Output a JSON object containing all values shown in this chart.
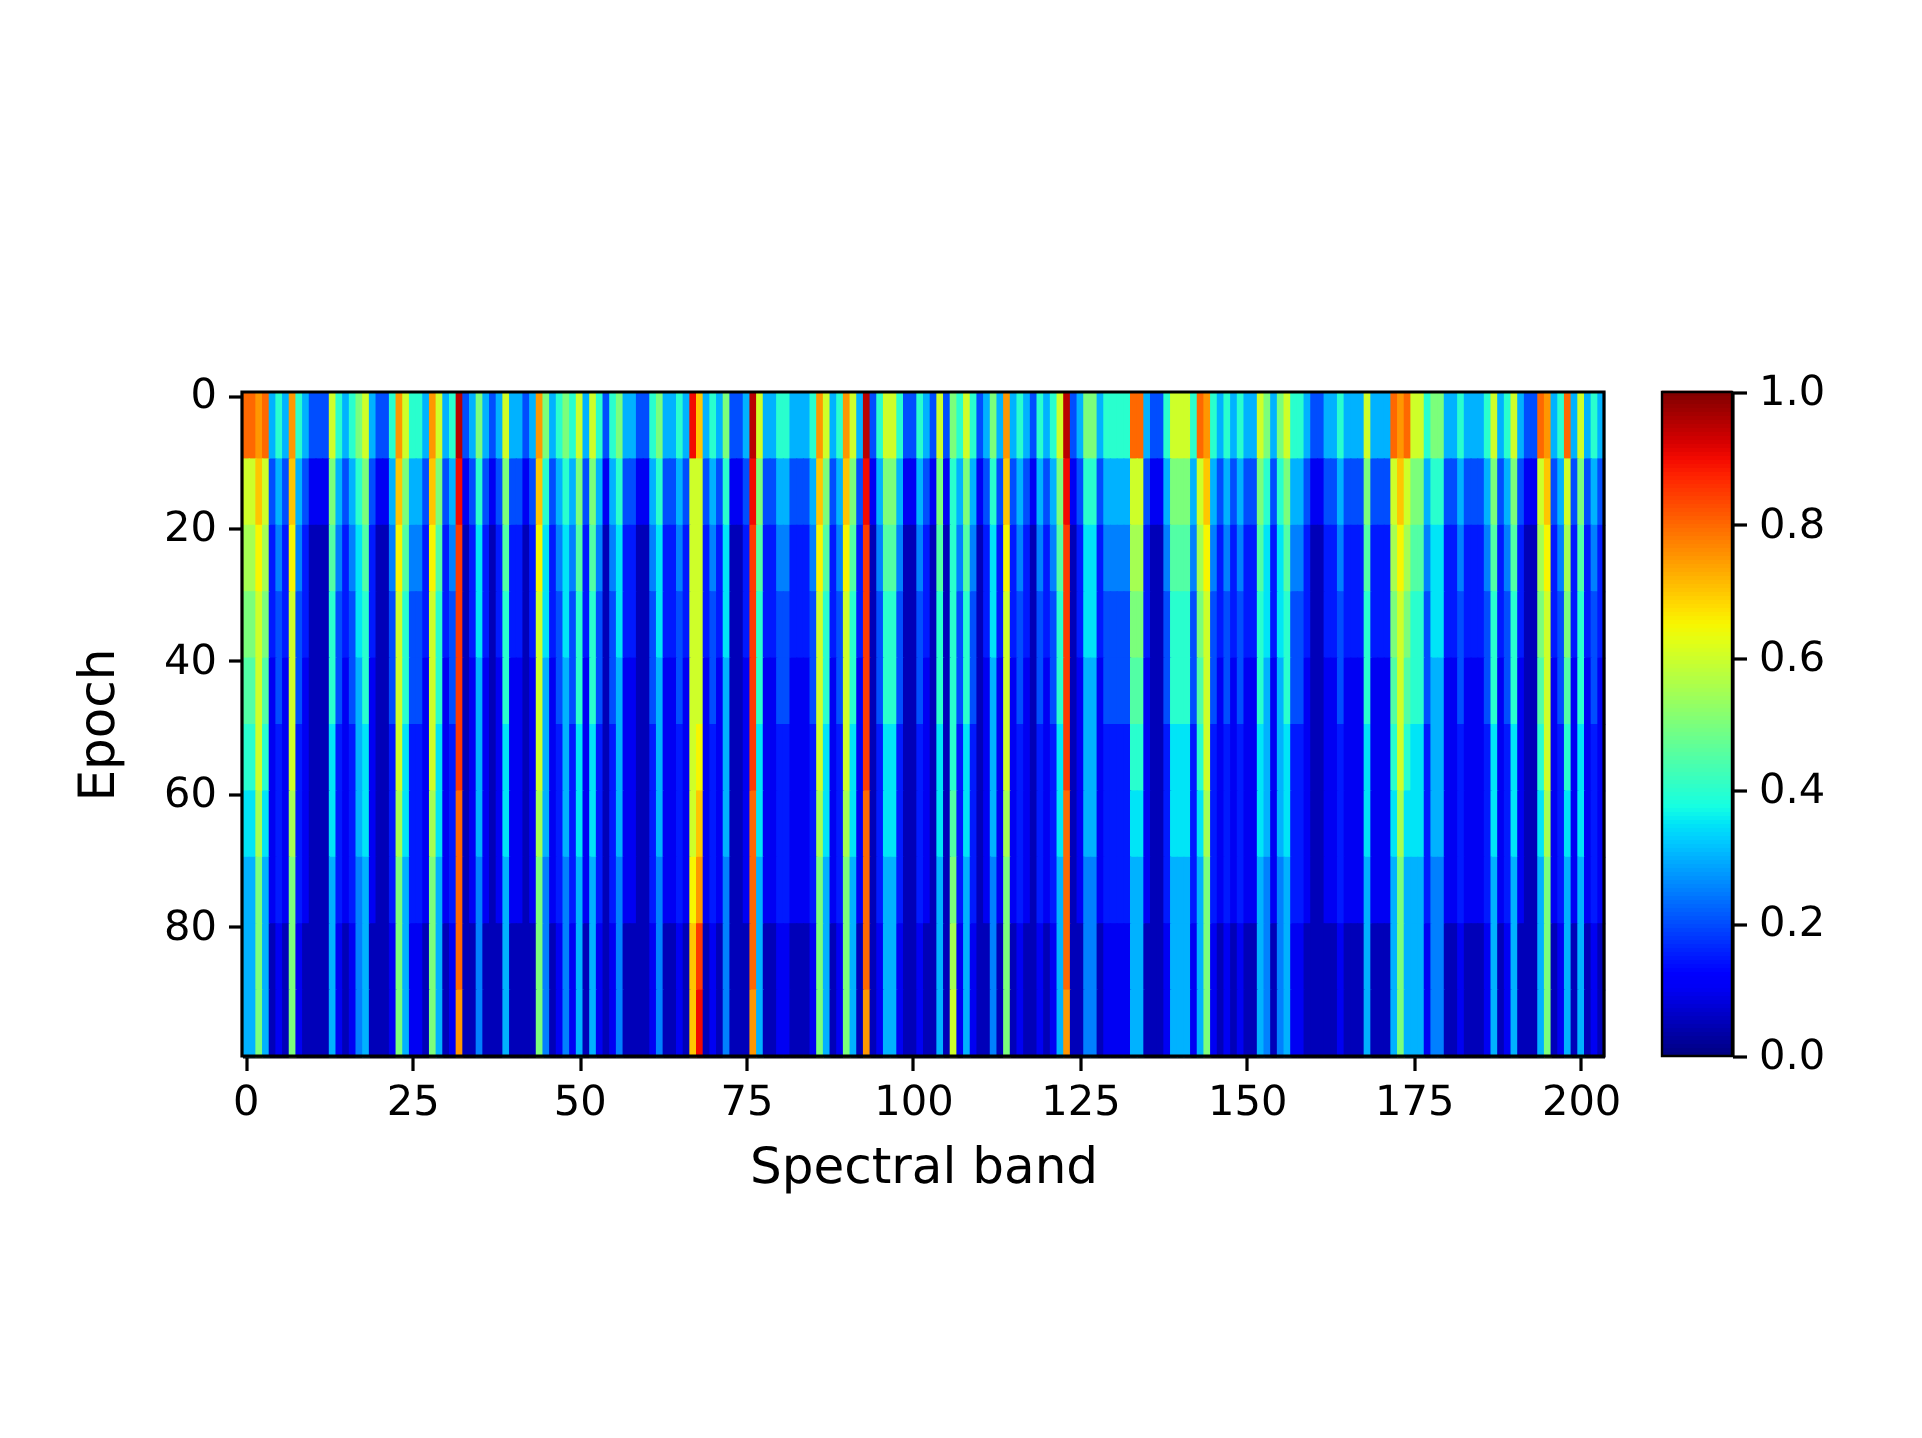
{
  "chart_data": {
    "type": "heatmap",
    "xlabel": "Spectral band",
    "ylabel": "Epoch",
    "xlim": [
      -0.5,
      203.5
    ],
    "ylim": [
      99.5,
      -0.5
    ],
    "xticks": [
      0,
      25,
      50,
      75,
      100,
      125,
      150,
      175,
      200
    ],
    "yticks": [
      0,
      20,
      40,
      60,
      80
    ],
    "clim": [
      0,
      1
    ],
    "cticks": [
      {
        "value": 0,
        "label": "0.0"
      },
      0.2,
      0.4,
      0.6,
      0.8,
      {
        "value": 1,
        "label": "1.0"
      }
    ],
    "cells": [
      [
        0.8,
        0.8,
        0.75,
        0.8,
        0.3,
        0.4,
        0.3,
        0.75,
        0.4,
        0.3,
        0.2,
        0.2,
        0.2,
        0.6,
        0.4,
        0.3,
        0.4,
        0.5,
        0.6,
        0.3,
        0.2,
        0.2,
        0.4,
        0.75,
        0.6,
        0.4,
        0.4,
        0.3,
        0.75,
        0.6,
        0.3,
        0.4,
        0.95,
        0.2,
        0.3,
        0.5,
        0.3,
        0.2,
        0.3,
        0.6,
        0.3,
        0.3,
        0.2,
        0.3,
        0.75,
        0.5,
        0.3,
        0.4,
        0.5,
        0.4,
        0.6,
        0.3,
        0.6,
        0.4,
        0.2,
        0.4,
        0.5,
        0.3,
        0.3,
        0.2,
        0.2,
        0.4,
        0.5,
        0.3,
        0.3,
        0.4,
        0.3,
        0.9,
        0.7,
        0.3,
        0.4,
        0.3,
        0.5,
        0.2,
        0.2,
        0.3,
        0.95,
        0.6,
        0.3,
        0.3,
        0.4,
        0.4,
        0.3,
        0.3,
        0.3,
        0.4,
        0.75,
        0.6,
        0.3,
        0.4,
        0.75,
        0.6,
        0.3,
        0.95,
        0.2,
        0.4,
        0.6,
        0.6,
        0.4,
        0.2,
        0.2,
        0.4,
        0.3,
        0.2,
        0.6,
        0.2,
        0.5,
        0.4,
        0.6,
        0.4,
        0.2,
        0.3,
        0.5,
        0.3,
        0.75,
        0.3,
        0.4,
        0.3,
        0.2,
        0.4,
        0.3,
        0.4,
        0.6,
        0.95,
        0.2,
        0.3,
        0.5,
        0.5,
        0.3,
        0.4,
        0.4,
        0.4,
        0.4,
        0.8,
        0.8,
        0.3,
        0.2,
        0.2,
        0.4,
        0.6,
        0.6,
        0.6,
        0.4,
        0.8,
        0.75,
        0.4,
        0.3,
        0.4,
        0.3,
        0.4,
        0.3,
        0.3,
        0.6,
        0.5,
        0.3,
        0.5,
        0.6,
        0.4,
        0.4,
        0.3,
        0.2,
        0.2,
        0.3,
        0.3,
        0.4,
        0.3,
        0.3,
        0.3,
        0.6,
        0.3,
        0.3,
        0.3,
        0.8,
        0.75,
        0.8,
        0.6,
        0.6,
        0.4,
        0.5,
        0.5,
        0.3,
        0.3,
        0.4,
        0.3,
        0.3,
        0.3,
        0.4,
        0.6,
        0.3,
        0.4,
        0.6,
        0.3,
        0.2,
        0.2,
        0.8,
        0.75,
        0.3,
        0.4,
        0.8,
        0.3,
        0.6,
        0.3,
        0.4,
        0.3
      ],
      [
        0.6,
        0.6,
        0.7,
        0.6,
        0.2,
        0.3,
        0.2,
        0.7,
        0.3,
        0.2,
        0.1,
        0.1,
        0.1,
        0.5,
        0.3,
        0.2,
        0.3,
        0.4,
        0.5,
        0.2,
        0.1,
        0.1,
        0.3,
        0.7,
        0.5,
        0.3,
        0.3,
        0.2,
        0.7,
        0.5,
        0.2,
        0.3,
        0.9,
        0.1,
        0.2,
        0.4,
        0.2,
        0.1,
        0.2,
        0.5,
        0.2,
        0.2,
        0.1,
        0.2,
        0.7,
        0.4,
        0.2,
        0.3,
        0.4,
        0.3,
        0.5,
        0.2,
        0.5,
        0.3,
        0.1,
        0.3,
        0.4,
        0.2,
        0.2,
        0.1,
        0.1,
        0.3,
        0.4,
        0.2,
        0.2,
        0.3,
        0.2,
        0.6,
        0.6,
        0.2,
        0.3,
        0.2,
        0.4,
        0.1,
        0.1,
        0.2,
        0.9,
        0.5,
        0.2,
        0.2,
        0.3,
        0.3,
        0.2,
        0.2,
        0.2,
        0.3,
        0.7,
        0.5,
        0.2,
        0.3,
        0.7,
        0.5,
        0.2,
        0.9,
        0.1,
        0.3,
        0.5,
        0.5,
        0.3,
        0.1,
        0.1,
        0.3,
        0.2,
        0.1,
        0.5,
        0.1,
        0.4,
        0.3,
        0.5,
        0.3,
        0.1,
        0.2,
        0.4,
        0.2,
        0.7,
        0.2,
        0.3,
        0.2,
        0.1,
        0.3,
        0.2,
        0.3,
        0.5,
        0.9,
        0.1,
        0.2,
        0.4,
        0.4,
        0.2,
        0.3,
        0.3,
        0.3,
        0.3,
        0.6,
        0.6,
        0.2,
        0.1,
        0.1,
        0.3,
        0.5,
        0.5,
        0.5,
        0.3,
        0.6,
        0.7,
        0.3,
        0.2,
        0.3,
        0.2,
        0.3,
        0.2,
        0.2,
        0.5,
        0.4,
        0.2,
        0.4,
        0.5,
        0.3,
        0.3,
        0.2,
        0.1,
        0.1,
        0.2,
        0.2,
        0.3,
        0.2,
        0.2,
        0.2,
        0.5,
        0.2,
        0.2,
        0.2,
        0.6,
        0.7,
        0.6,
        0.5,
        0.5,
        0.3,
        0.4,
        0.4,
        0.2,
        0.2,
        0.3,
        0.2,
        0.2,
        0.2,
        0.3,
        0.5,
        0.2,
        0.3,
        0.5,
        0.2,
        0.1,
        0.1,
        0.6,
        0.7,
        0.2,
        0.3,
        0.6,
        0.2,
        0.5,
        0.2,
        0.3,
        0.2
      ],
      [
        0.55,
        0.55,
        0.65,
        0.55,
        0.15,
        0.25,
        0.15,
        0.65,
        0.25,
        0.15,
        0.05,
        0.05,
        0.05,
        0.45,
        0.25,
        0.15,
        0.25,
        0.35,
        0.45,
        0.15,
        0.05,
        0.05,
        0.25,
        0.65,
        0.45,
        0.25,
        0.25,
        0.15,
        0.65,
        0.45,
        0.15,
        0.25,
        0.85,
        0.05,
        0.15,
        0.35,
        0.15,
        0.05,
        0.15,
        0.45,
        0.15,
        0.15,
        0.05,
        0.15,
        0.65,
        0.35,
        0.15,
        0.25,
        0.35,
        0.25,
        0.45,
        0.15,
        0.45,
        0.25,
        0.05,
        0.25,
        0.35,
        0.15,
        0.15,
        0.05,
        0.05,
        0.25,
        0.35,
        0.15,
        0.15,
        0.25,
        0.15,
        0.6,
        0.6,
        0.15,
        0.25,
        0.15,
        0.35,
        0.05,
        0.05,
        0.15,
        0.85,
        0.45,
        0.15,
        0.15,
        0.25,
        0.25,
        0.15,
        0.15,
        0.15,
        0.25,
        0.65,
        0.45,
        0.15,
        0.25,
        0.65,
        0.45,
        0.15,
        0.85,
        0.05,
        0.25,
        0.45,
        0.45,
        0.25,
        0.05,
        0.05,
        0.25,
        0.15,
        0.05,
        0.45,
        0.05,
        0.4,
        0.25,
        0.45,
        0.25,
        0.05,
        0.15,
        0.35,
        0.15,
        0.65,
        0.15,
        0.25,
        0.15,
        0.05,
        0.25,
        0.15,
        0.25,
        0.45,
        0.85,
        0.05,
        0.15,
        0.35,
        0.35,
        0.15,
        0.25,
        0.25,
        0.25,
        0.25,
        0.55,
        0.55,
        0.15,
        0.05,
        0.05,
        0.25,
        0.45,
        0.45,
        0.45,
        0.25,
        0.55,
        0.65,
        0.25,
        0.15,
        0.25,
        0.15,
        0.25,
        0.15,
        0.15,
        0.45,
        0.35,
        0.15,
        0.35,
        0.45,
        0.25,
        0.25,
        0.15,
        0.05,
        0.05,
        0.15,
        0.15,
        0.25,
        0.15,
        0.15,
        0.15,
        0.45,
        0.15,
        0.15,
        0.15,
        0.55,
        0.65,
        0.55,
        0.45,
        0.45,
        0.25,
        0.35,
        0.35,
        0.15,
        0.15,
        0.25,
        0.15,
        0.15,
        0.15,
        0.25,
        0.45,
        0.15,
        0.25,
        0.45,
        0.15,
        0.05,
        0.05,
        0.55,
        0.65,
        0.15,
        0.25,
        0.55,
        0.15,
        0.45,
        0.15,
        0.25,
        0.15
      ],
      [
        0.5,
        0.5,
        0.6,
        0.5,
        0.15,
        0.2,
        0.15,
        0.6,
        0.2,
        0.15,
        0.05,
        0.05,
        0.05,
        0.4,
        0.2,
        0.15,
        0.2,
        0.35,
        0.4,
        0.15,
        0.05,
        0.05,
        0.2,
        0.6,
        0.4,
        0.2,
        0.2,
        0.15,
        0.6,
        0.4,
        0.15,
        0.2,
        0.85,
        0.05,
        0.15,
        0.35,
        0.15,
        0.05,
        0.15,
        0.4,
        0.15,
        0.15,
        0.05,
        0.15,
        0.6,
        0.35,
        0.15,
        0.2,
        0.35,
        0.2,
        0.4,
        0.15,
        0.4,
        0.2,
        0.05,
        0.2,
        0.35,
        0.15,
        0.15,
        0.05,
        0.05,
        0.2,
        0.35,
        0.15,
        0.15,
        0.2,
        0.15,
        0.6,
        0.6,
        0.15,
        0.2,
        0.15,
        0.35,
        0.05,
        0.05,
        0.15,
        0.85,
        0.4,
        0.15,
        0.15,
        0.2,
        0.2,
        0.15,
        0.15,
        0.15,
        0.2,
        0.6,
        0.4,
        0.15,
        0.2,
        0.6,
        0.4,
        0.15,
        0.85,
        0.05,
        0.2,
        0.4,
        0.4,
        0.2,
        0.05,
        0.05,
        0.2,
        0.15,
        0.05,
        0.4,
        0.05,
        0.4,
        0.2,
        0.4,
        0.2,
        0.05,
        0.15,
        0.35,
        0.15,
        0.6,
        0.15,
        0.2,
        0.15,
        0.05,
        0.2,
        0.15,
        0.2,
        0.4,
        0.85,
        0.05,
        0.15,
        0.35,
        0.35,
        0.15,
        0.2,
        0.2,
        0.2,
        0.2,
        0.5,
        0.5,
        0.15,
        0.05,
        0.05,
        0.2,
        0.4,
        0.4,
        0.4,
        0.2,
        0.5,
        0.6,
        0.2,
        0.15,
        0.2,
        0.15,
        0.2,
        0.15,
        0.15,
        0.4,
        0.35,
        0.15,
        0.35,
        0.4,
        0.2,
        0.2,
        0.15,
        0.05,
        0.05,
        0.15,
        0.15,
        0.2,
        0.15,
        0.15,
        0.15,
        0.4,
        0.15,
        0.15,
        0.15,
        0.5,
        0.6,
        0.5,
        0.4,
        0.4,
        0.2,
        0.35,
        0.35,
        0.15,
        0.15,
        0.2,
        0.15,
        0.15,
        0.15,
        0.2,
        0.4,
        0.15,
        0.2,
        0.4,
        0.15,
        0.05,
        0.05,
        0.5,
        0.6,
        0.15,
        0.2,
        0.5,
        0.15,
        0.4,
        0.15,
        0.2,
        0.15
      ],
      [
        0.45,
        0.45,
        0.6,
        0.45,
        0.1,
        0.2,
        0.1,
        0.6,
        0.2,
        0.1,
        0.05,
        0.05,
        0.05,
        0.4,
        0.2,
        0.1,
        0.2,
        0.3,
        0.4,
        0.1,
        0.05,
        0.05,
        0.2,
        0.6,
        0.4,
        0.2,
        0.2,
        0.1,
        0.6,
        0.4,
        0.1,
        0.2,
        0.85,
        0.05,
        0.1,
        0.3,
        0.1,
        0.05,
        0.1,
        0.4,
        0.1,
        0.1,
        0.05,
        0.1,
        0.6,
        0.3,
        0.1,
        0.2,
        0.3,
        0.2,
        0.4,
        0.1,
        0.4,
        0.2,
        0.05,
        0.2,
        0.3,
        0.1,
        0.1,
        0.05,
        0.05,
        0.2,
        0.3,
        0.1,
        0.1,
        0.2,
        0.1,
        0.6,
        0.6,
        0.1,
        0.2,
        0.1,
        0.3,
        0.05,
        0.05,
        0.1,
        0.85,
        0.4,
        0.1,
        0.1,
        0.2,
        0.2,
        0.1,
        0.1,
        0.1,
        0.2,
        0.6,
        0.4,
        0.1,
        0.2,
        0.6,
        0.4,
        0.1,
        0.85,
        0.05,
        0.2,
        0.4,
        0.4,
        0.2,
        0.05,
        0.05,
        0.2,
        0.1,
        0.05,
        0.4,
        0.05,
        0.4,
        0.2,
        0.4,
        0.2,
        0.05,
        0.1,
        0.3,
        0.1,
        0.6,
        0.1,
        0.2,
        0.1,
        0.05,
        0.2,
        0.1,
        0.2,
        0.4,
        0.85,
        0.05,
        0.1,
        0.3,
        0.3,
        0.1,
        0.2,
        0.2,
        0.2,
        0.2,
        0.45,
        0.45,
        0.1,
        0.05,
        0.05,
        0.2,
        0.4,
        0.4,
        0.4,
        0.2,
        0.45,
        0.6,
        0.2,
        0.1,
        0.2,
        0.1,
        0.2,
        0.1,
        0.1,
        0.4,
        0.3,
        0.1,
        0.3,
        0.4,
        0.2,
        0.2,
        0.1,
        0.05,
        0.05,
        0.1,
        0.1,
        0.2,
        0.1,
        0.1,
        0.1,
        0.4,
        0.1,
        0.1,
        0.1,
        0.45,
        0.6,
        0.45,
        0.4,
        0.4,
        0.2,
        0.3,
        0.3,
        0.1,
        0.1,
        0.2,
        0.1,
        0.1,
        0.1,
        0.2,
        0.4,
        0.1,
        0.2,
        0.4,
        0.1,
        0.05,
        0.05,
        0.45,
        0.6,
        0.1,
        0.2,
        0.45,
        0.1,
        0.4,
        0.1,
        0.2,
        0.1
      ],
      [
        0.4,
        0.4,
        0.6,
        0.4,
        0.1,
        0.15,
        0.1,
        0.6,
        0.15,
        0.1,
        0.05,
        0.05,
        0.05,
        0.35,
        0.15,
        0.1,
        0.15,
        0.3,
        0.35,
        0.1,
        0.05,
        0.05,
        0.15,
        0.6,
        0.35,
        0.15,
        0.15,
        0.1,
        0.6,
        0.35,
        0.1,
        0.15,
        0.85,
        0.05,
        0.1,
        0.3,
        0.1,
        0.05,
        0.1,
        0.35,
        0.1,
        0.1,
        0.05,
        0.1,
        0.6,
        0.3,
        0.1,
        0.15,
        0.3,
        0.15,
        0.35,
        0.1,
        0.35,
        0.15,
        0.05,
        0.15,
        0.3,
        0.1,
        0.1,
        0.05,
        0.05,
        0.15,
        0.3,
        0.1,
        0.1,
        0.15,
        0.1,
        0.6,
        0.65,
        0.1,
        0.15,
        0.1,
        0.3,
        0.05,
        0.05,
        0.1,
        0.85,
        0.35,
        0.1,
        0.1,
        0.15,
        0.15,
        0.1,
        0.1,
        0.1,
        0.15,
        0.6,
        0.35,
        0.1,
        0.15,
        0.6,
        0.35,
        0.1,
        0.85,
        0.05,
        0.15,
        0.35,
        0.35,
        0.15,
        0.05,
        0.05,
        0.15,
        0.1,
        0.05,
        0.35,
        0.05,
        0.4,
        0.15,
        0.35,
        0.15,
        0.05,
        0.1,
        0.3,
        0.1,
        0.6,
        0.1,
        0.15,
        0.1,
        0.05,
        0.15,
        0.1,
        0.15,
        0.35,
        0.85,
        0.05,
        0.1,
        0.3,
        0.3,
        0.1,
        0.15,
        0.15,
        0.15,
        0.15,
        0.4,
        0.4,
        0.1,
        0.05,
        0.05,
        0.15,
        0.35,
        0.35,
        0.35,
        0.15,
        0.4,
        0.6,
        0.15,
        0.1,
        0.15,
        0.1,
        0.15,
        0.1,
        0.1,
        0.35,
        0.3,
        0.1,
        0.3,
        0.35,
        0.15,
        0.15,
        0.1,
        0.05,
        0.05,
        0.1,
        0.1,
        0.15,
        0.1,
        0.1,
        0.1,
        0.35,
        0.1,
        0.1,
        0.1,
        0.4,
        0.6,
        0.4,
        0.35,
        0.35,
        0.15,
        0.3,
        0.3,
        0.1,
        0.1,
        0.15,
        0.1,
        0.1,
        0.1,
        0.15,
        0.35,
        0.1,
        0.15,
        0.35,
        0.1,
        0.05,
        0.05,
        0.4,
        0.6,
        0.1,
        0.15,
        0.4,
        0.1,
        0.35,
        0.1,
        0.15,
        0.1
      ],
      [
        0.35,
        0.35,
        0.55,
        0.35,
        0.1,
        0.15,
        0.1,
        0.55,
        0.15,
        0.1,
        0.05,
        0.05,
        0.05,
        0.35,
        0.15,
        0.1,
        0.15,
        0.3,
        0.35,
        0.1,
        0.05,
        0.05,
        0.15,
        0.55,
        0.35,
        0.15,
        0.15,
        0.1,
        0.55,
        0.35,
        0.1,
        0.15,
        0.8,
        0.05,
        0.1,
        0.3,
        0.1,
        0.05,
        0.1,
        0.35,
        0.1,
        0.1,
        0.05,
        0.1,
        0.55,
        0.3,
        0.1,
        0.15,
        0.3,
        0.15,
        0.35,
        0.1,
        0.35,
        0.15,
        0.05,
        0.15,
        0.3,
        0.1,
        0.1,
        0.05,
        0.05,
        0.15,
        0.3,
        0.1,
        0.1,
        0.15,
        0.1,
        0.6,
        0.7,
        0.1,
        0.15,
        0.1,
        0.3,
        0.05,
        0.05,
        0.1,
        0.8,
        0.35,
        0.1,
        0.1,
        0.15,
        0.15,
        0.1,
        0.1,
        0.1,
        0.15,
        0.55,
        0.35,
        0.1,
        0.15,
        0.55,
        0.35,
        0.1,
        0.8,
        0.05,
        0.15,
        0.35,
        0.35,
        0.15,
        0.05,
        0.05,
        0.15,
        0.1,
        0.05,
        0.35,
        0.05,
        0.45,
        0.15,
        0.35,
        0.15,
        0.05,
        0.1,
        0.3,
        0.1,
        0.55,
        0.1,
        0.15,
        0.1,
        0.05,
        0.15,
        0.1,
        0.15,
        0.35,
        0.8,
        0.05,
        0.1,
        0.3,
        0.3,
        0.1,
        0.15,
        0.15,
        0.15,
        0.15,
        0.35,
        0.35,
        0.1,
        0.05,
        0.05,
        0.15,
        0.35,
        0.35,
        0.35,
        0.15,
        0.35,
        0.55,
        0.15,
        0.1,
        0.15,
        0.1,
        0.15,
        0.1,
        0.1,
        0.35,
        0.3,
        0.1,
        0.3,
        0.35,
        0.15,
        0.15,
        0.1,
        0.05,
        0.05,
        0.1,
        0.1,
        0.15,
        0.1,
        0.1,
        0.1,
        0.35,
        0.1,
        0.1,
        0.1,
        0.35,
        0.55,
        0.35,
        0.35,
        0.35,
        0.15,
        0.3,
        0.3,
        0.1,
        0.1,
        0.15,
        0.1,
        0.1,
        0.1,
        0.15,
        0.35,
        0.1,
        0.15,
        0.35,
        0.1,
        0.05,
        0.05,
        0.35,
        0.55,
        0.1,
        0.15,
        0.35,
        0.1,
        0.35,
        0.1,
        0.15,
        0.1
      ],
      [
        0.3,
        0.3,
        0.5,
        0.3,
        0.1,
        0.15,
        0.1,
        0.5,
        0.15,
        0.1,
        0.05,
        0.05,
        0.05,
        0.3,
        0.15,
        0.1,
        0.15,
        0.25,
        0.3,
        0.1,
        0.05,
        0.05,
        0.15,
        0.5,
        0.3,
        0.15,
        0.15,
        0.1,
        0.5,
        0.3,
        0.1,
        0.15,
        0.8,
        0.05,
        0.1,
        0.25,
        0.1,
        0.05,
        0.1,
        0.3,
        0.1,
        0.1,
        0.05,
        0.1,
        0.5,
        0.25,
        0.1,
        0.15,
        0.25,
        0.15,
        0.3,
        0.1,
        0.3,
        0.15,
        0.05,
        0.15,
        0.25,
        0.1,
        0.1,
        0.05,
        0.05,
        0.15,
        0.25,
        0.1,
        0.1,
        0.15,
        0.1,
        0.65,
        0.75,
        0.1,
        0.15,
        0.1,
        0.25,
        0.05,
        0.05,
        0.1,
        0.8,
        0.3,
        0.1,
        0.1,
        0.15,
        0.15,
        0.1,
        0.1,
        0.1,
        0.15,
        0.5,
        0.3,
        0.1,
        0.15,
        0.5,
        0.3,
        0.1,
        0.8,
        0.05,
        0.15,
        0.3,
        0.3,
        0.15,
        0.05,
        0.05,
        0.15,
        0.1,
        0.05,
        0.3,
        0.05,
        0.5,
        0.15,
        0.3,
        0.15,
        0.05,
        0.1,
        0.25,
        0.1,
        0.5,
        0.1,
        0.15,
        0.1,
        0.05,
        0.15,
        0.1,
        0.15,
        0.3,
        0.8,
        0.05,
        0.1,
        0.25,
        0.25,
        0.1,
        0.15,
        0.15,
        0.15,
        0.15,
        0.3,
        0.3,
        0.1,
        0.05,
        0.05,
        0.15,
        0.3,
        0.3,
        0.3,
        0.15,
        0.3,
        0.5,
        0.15,
        0.1,
        0.15,
        0.1,
        0.15,
        0.1,
        0.1,
        0.3,
        0.25,
        0.1,
        0.25,
        0.3,
        0.15,
        0.15,
        0.1,
        0.05,
        0.05,
        0.1,
        0.1,
        0.15,
        0.1,
        0.1,
        0.1,
        0.3,
        0.1,
        0.1,
        0.1,
        0.3,
        0.5,
        0.3,
        0.3,
        0.3,
        0.15,
        0.25,
        0.25,
        0.1,
        0.1,
        0.15,
        0.1,
        0.1,
        0.1,
        0.15,
        0.3,
        0.1,
        0.15,
        0.3,
        0.1,
        0.05,
        0.05,
        0.3,
        0.5,
        0.1,
        0.15,
        0.3,
        0.1,
        0.3,
        0.1,
        0.15,
        0.1
      ],
      [
        0.3,
        0.3,
        0.5,
        0.3,
        0.05,
        0.1,
        0.05,
        0.5,
        0.1,
        0.05,
        0.05,
        0.05,
        0.05,
        0.3,
        0.1,
        0.05,
        0.1,
        0.25,
        0.3,
        0.05,
        0.05,
        0.05,
        0.1,
        0.5,
        0.3,
        0.1,
        0.1,
        0.05,
        0.5,
        0.3,
        0.05,
        0.1,
        0.8,
        0.05,
        0.05,
        0.25,
        0.05,
        0.05,
        0.05,
        0.3,
        0.05,
        0.05,
        0.05,
        0.05,
        0.5,
        0.25,
        0.05,
        0.1,
        0.25,
        0.1,
        0.3,
        0.05,
        0.3,
        0.1,
        0.05,
        0.1,
        0.25,
        0.05,
        0.05,
        0.05,
        0.05,
        0.1,
        0.25,
        0.05,
        0.05,
        0.1,
        0.05,
        0.7,
        0.85,
        0.05,
        0.1,
        0.05,
        0.25,
        0.05,
        0.05,
        0.05,
        0.8,
        0.3,
        0.05,
        0.05,
        0.1,
        0.1,
        0.05,
        0.05,
        0.05,
        0.1,
        0.5,
        0.3,
        0.05,
        0.1,
        0.5,
        0.3,
        0.05,
        0.8,
        0.05,
        0.1,
        0.3,
        0.3,
        0.1,
        0.05,
        0.05,
        0.1,
        0.05,
        0.05,
        0.3,
        0.05,
        0.55,
        0.1,
        0.3,
        0.1,
        0.05,
        0.05,
        0.25,
        0.05,
        0.5,
        0.05,
        0.1,
        0.05,
        0.05,
        0.1,
        0.05,
        0.1,
        0.3,
        0.8,
        0.05,
        0.05,
        0.25,
        0.25,
        0.05,
        0.1,
        0.1,
        0.1,
        0.1,
        0.3,
        0.3,
        0.05,
        0.05,
        0.05,
        0.1,
        0.3,
        0.3,
        0.3,
        0.1,
        0.3,
        0.5,
        0.1,
        0.05,
        0.1,
        0.05,
        0.1,
        0.05,
        0.05,
        0.3,
        0.25,
        0.05,
        0.25,
        0.3,
        0.1,
        0.1,
        0.05,
        0.05,
        0.05,
        0.05,
        0.05,
        0.1,
        0.05,
        0.05,
        0.05,
        0.3,
        0.05,
        0.05,
        0.05,
        0.3,
        0.5,
        0.3,
        0.3,
        0.3,
        0.1,
        0.25,
        0.25,
        0.05,
        0.05,
        0.1,
        0.05,
        0.05,
        0.05,
        0.1,
        0.3,
        0.05,
        0.1,
        0.3,
        0.05,
        0.05,
        0.05,
        0.3,
        0.5,
        0.05,
        0.1,
        0.3,
        0.05,
        0.3,
        0.05,
        0.1,
        0.05
      ],
      [
        0.3,
        0.3,
        0.5,
        0.3,
        0.05,
        0.1,
        0.05,
        0.5,
        0.1,
        0.05,
        0.05,
        0.05,
        0.05,
        0.3,
        0.1,
        0.05,
        0.1,
        0.25,
        0.3,
        0.05,
        0.05,
        0.05,
        0.1,
        0.5,
        0.3,
        0.1,
        0.1,
        0.05,
        0.5,
        0.3,
        0.05,
        0.1,
        0.75,
        0.05,
        0.05,
        0.25,
        0.05,
        0.05,
        0.05,
        0.3,
        0.05,
        0.05,
        0.05,
        0.05,
        0.5,
        0.25,
        0.05,
        0.1,
        0.25,
        0.1,
        0.3,
        0.05,
        0.3,
        0.1,
        0.05,
        0.1,
        0.25,
        0.05,
        0.05,
        0.05,
        0.05,
        0.1,
        0.25,
        0.05,
        0.05,
        0.1,
        0.05,
        0.7,
        0.9,
        0.05,
        0.1,
        0.05,
        0.25,
        0.05,
        0.05,
        0.05,
        0.75,
        0.3,
        0.05,
        0.05,
        0.1,
        0.1,
        0.05,
        0.05,
        0.05,
        0.1,
        0.5,
        0.3,
        0.05,
        0.1,
        0.5,
        0.3,
        0.05,
        0.75,
        0.05,
        0.1,
        0.3,
        0.3,
        0.1,
        0.05,
        0.05,
        0.1,
        0.05,
        0.05,
        0.3,
        0.05,
        0.6,
        0.1,
        0.3,
        0.1,
        0.05,
        0.05,
        0.25,
        0.05,
        0.5,
        0.05,
        0.1,
        0.05,
        0.05,
        0.1,
        0.05,
        0.1,
        0.3,
        0.75,
        0.05,
        0.05,
        0.25,
        0.25,
        0.05,
        0.1,
        0.1,
        0.1,
        0.1,
        0.3,
        0.3,
        0.05,
        0.05,
        0.05,
        0.1,
        0.3,
        0.3,
        0.3,
        0.1,
        0.3,
        0.5,
        0.1,
        0.05,
        0.1,
        0.05,
        0.1,
        0.05,
        0.05,
        0.3,
        0.25,
        0.05,
        0.25,
        0.3,
        0.1,
        0.1,
        0.05,
        0.05,
        0.05,
        0.05,
        0.05,
        0.1,
        0.05,
        0.05,
        0.05,
        0.3,
        0.05,
        0.05,
        0.05,
        0.3,
        0.5,
        0.3,
        0.3,
        0.3,
        0.1,
        0.25,
        0.25,
        0.05,
        0.05,
        0.1,
        0.05,
        0.05,
        0.05,
        0.1,
        0.3,
        0.05,
        0.1,
        0.3,
        0.05,
        0.05,
        0.05,
        0.3,
        0.5,
        0.05,
        0.1,
        0.3,
        0.05,
        0.3,
        0.05,
        0.1,
        0.05
      ]
    ]
  }
}
